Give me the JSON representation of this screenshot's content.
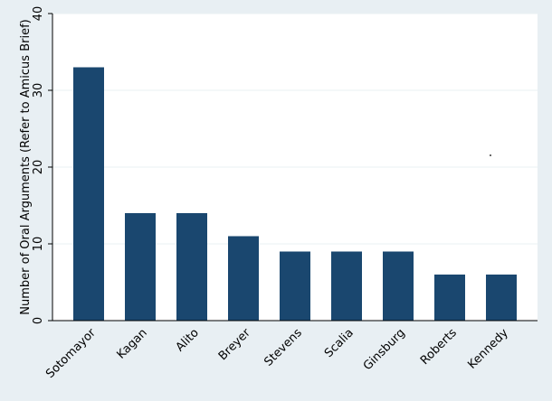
{
  "chart_data": {
    "type": "bar",
    "title": "",
    "xlabel": "",
    "ylabel": "Number of Oral Arguments (Refer to Amicus Brief)",
    "categories": [
      "Sotomayor",
      "Kagan",
      "Alito",
      "Breyer",
      "Stevens",
      "Scalia",
      "Ginsburg",
      "Roberts",
      "Kennedy"
    ],
    "values": [
      33,
      14,
      14,
      11,
      9,
      9,
      9,
      6,
      6
    ],
    "ylim": [
      0,
      40
    ],
    "yticks": [
      0,
      10,
      20,
      30,
      40
    ],
    "grid": true,
    "legend": "none",
    "colors": {
      "bar": "#1a476f",
      "plot_background": "#ffffff",
      "page_background": "#e8eff3",
      "grid": "#eaf2f3"
    }
  }
}
